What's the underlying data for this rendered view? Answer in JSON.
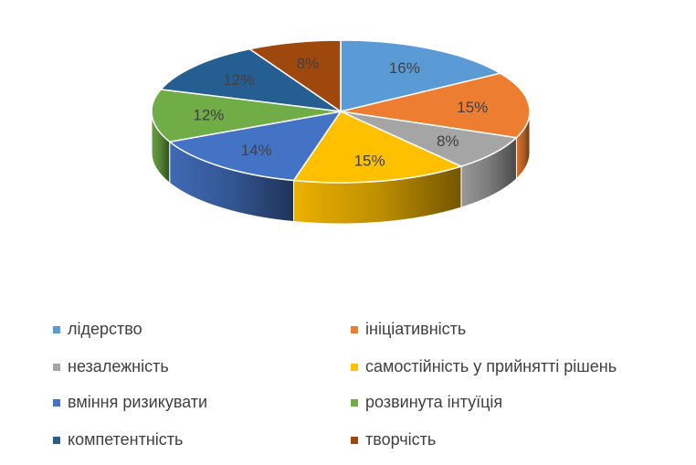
{
  "chart_data": {
    "type": "pie",
    "variant": "3d",
    "categories": [
      "лідерство",
      "ініціативність",
      "незалежність",
      "самостійність у прийнятті рішень",
      "вміння ризикувати",
      "розвинута інтуїція",
      "компетентність",
      "творчість"
    ],
    "values": [
      16,
      15,
      8,
      15,
      14,
      12,
      12,
      8
    ],
    "labels": [
      "16%",
      "15%",
      "8%",
      "15%",
      "14%",
      "12%",
      "12%",
      "8%"
    ],
    "colors": [
      "#5B9BD5",
      "#ED7D31",
      "#A5A5A5",
      "#FFC000",
      "#4472C4",
      "#70AD47",
      "#255E91",
      "#9E480E"
    ],
    "legend_position": "bottom",
    "title": ""
  }
}
